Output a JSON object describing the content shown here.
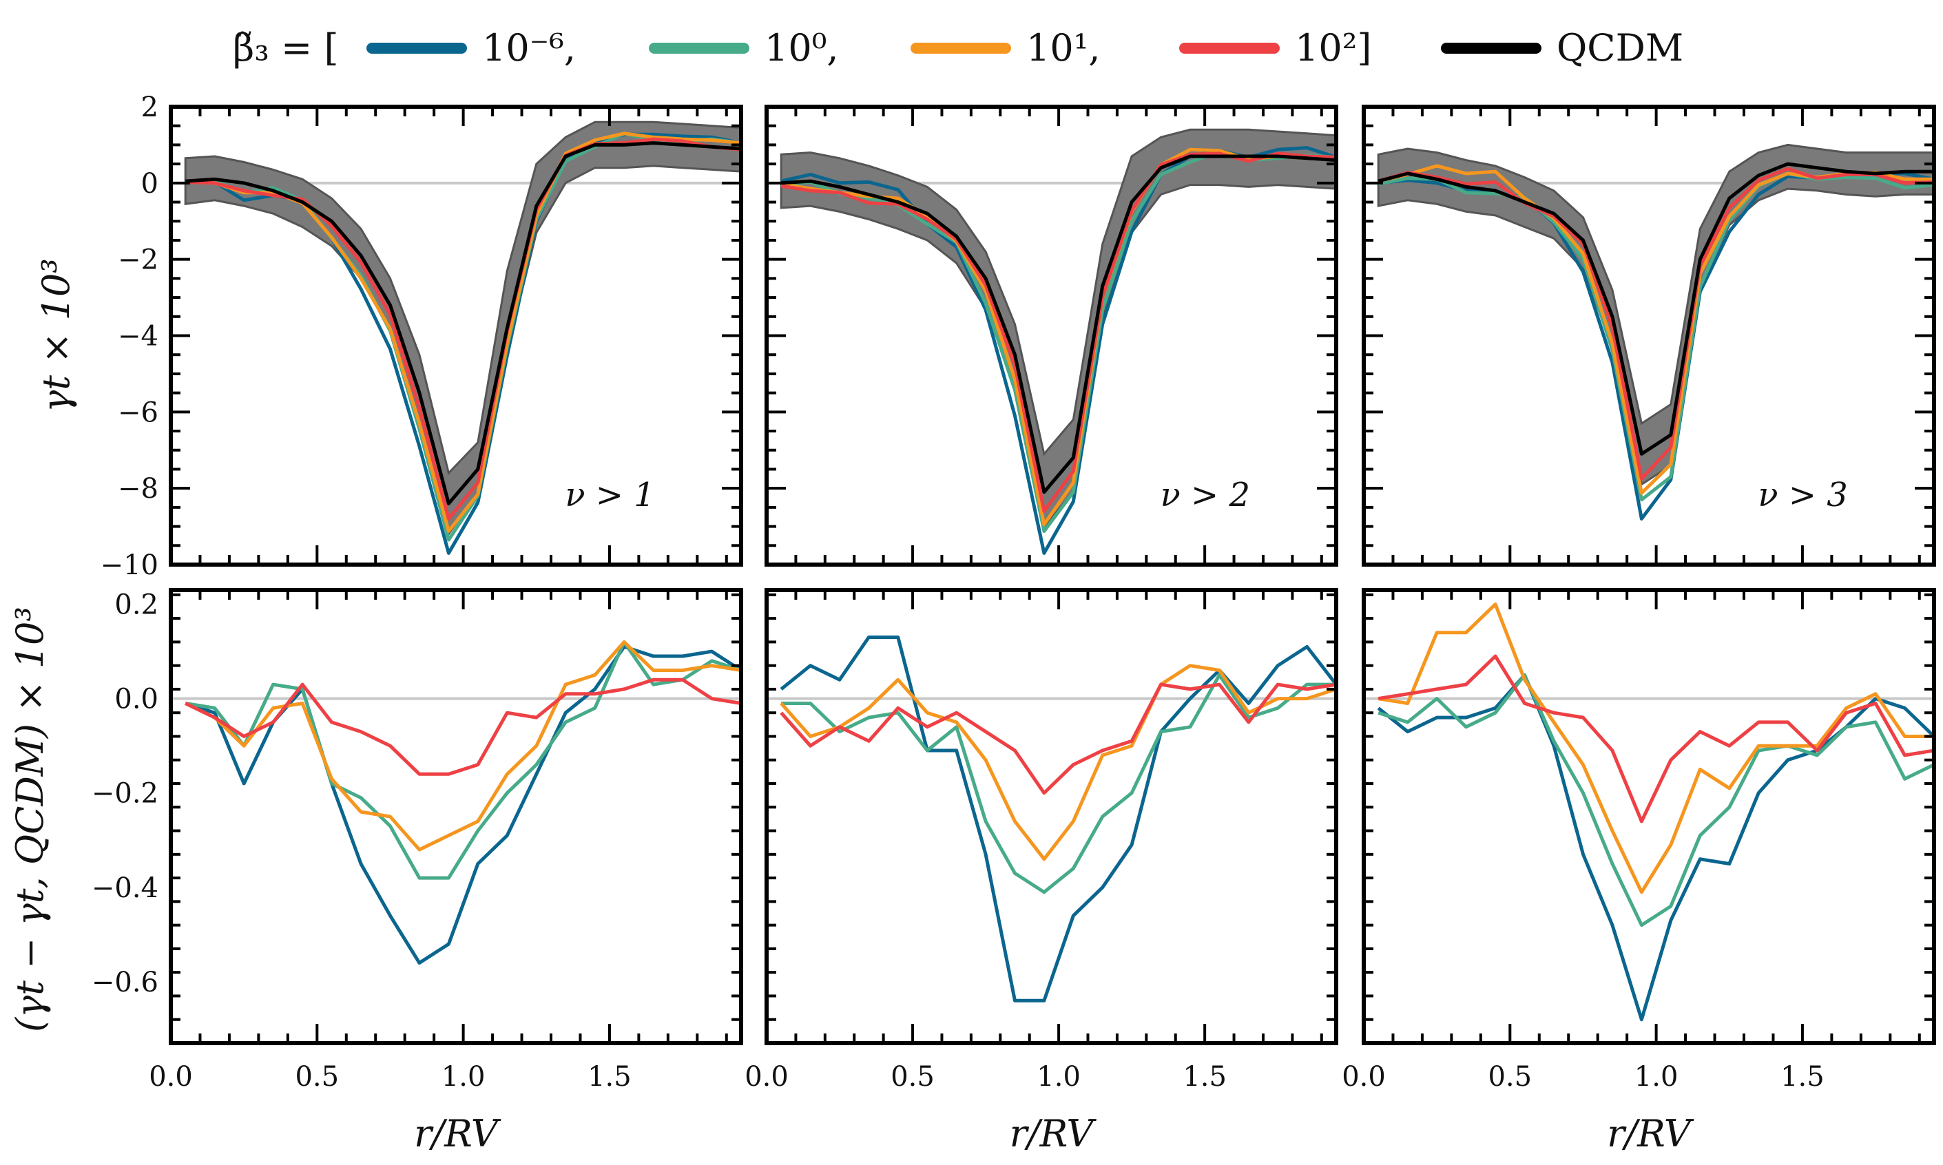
{
  "legend": {
    "prefix": "β̃₃ = [",
    "items": [
      {
        "label": "10⁻⁶,",
        "color": "#0b668f"
      },
      {
        "label": "10⁰,",
        "color": "#47ab8a"
      },
      {
        "label": "10¹,",
        "color": "#f5961f"
      },
      {
        "label": "10²]",
        "color": "#ee4145"
      },
      {
        "label": "QCDM",
        "color": "#000000"
      }
    ]
  },
  "labels": {
    "top_ylabel": "γt × 10³",
    "bottom_ylabel": "(γt − γt, QCDM) × 10³",
    "xlabel": "r/RV"
  },
  "chart_data": {
    "type": "line",
    "x": [
      0.05,
      0.15,
      0.25,
      0.35,
      0.45,
      0.55,
      0.65,
      0.75,
      0.85,
      0.95,
      1.05,
      1.15,
      1.25,
      1.35,
      1.45,
      1.55,
      1.65,
      1.75,
      1.85,
      1.95
    ],
    "xlim": [
      0.0,
      1.95
    ],
    "x_ticks": [
      "0.0",
      "0.5",
      "1.0",
      "1.5"
    ],
    "top_ylim": [
      -10,
      2
    ],
    "top_y_ticks": [
      "2",
      "0",
      "−2",
      "−4",
      "−6",
      "−8",
      "−10"
    ],
    "bottom_ylim": [
      -0.73,
      0.23
    ],
    "bottom_y_ticks": [
      "0.2",
      "0.0",
      "−0.2",
      "−0.4",
      "−0.6"
    ],
    "panels": [
      {
        "annotation": "ν > 1",
        "qcdm": [
          0.05,
          0.1,
          0.0,
          -0.2,
          -0.5,
          -1.0,
          -1.9,
          -3.2,
          -5.5,
          -8.4,
          -7.5,
          -3.8,
          -0.6,
          0.7,
          1.0,
          1.0,
          1.05,
          1.0,
          0.95,
          0.9
        ],
        "band_upper": [
          0.65,
          0.7,
          0.55,
          0.35,
          0.1,
          -0.4,
          -1.2,
          -2.5,
          -4.5,
          -7.6,
          -6.8,
          -2.3,
          0.5,
          1.2,
          1.6,
          1.6,
          1.6,
          1.55,
          1.5,
          1.45
        ],
        "band_lower": [
          -0.55,
          -0.45,
          -0.6,
          -0.8,
          -1.15,
          -1.65,
          -2.5,
          -3.8,
          -6.3,
          -9.2,
          -8.1,
          -4.4,
          -1.3,
          0.0,
          0.4,
          0.4,
          0.45,
          0.4,
          0.35,
          0.3
        ],
        "diff": [
          {
            "name": "10⁻⁶,",
            "values": [
              -0.01,
              -0.03,
              -0.18,
              -0.05,
              0.02,
              -0.18,
              -0.35,
              -0.46,
              -0.56,
              -0.52,
              -0.35,
              -0.29,
              -0.16,
              -0.03,
              0.02,
              0.11,
              0.09,
              0.09,
              0.1,
              0.06
            ]
          },
          {
            "name": "10⁰,",
            "values": [
              -0.01,
              -0.02,
              -0.1,
              0.03,
              0.02,
              -0.18,
              -0.21,
              -0.27,
              -0.38,
              -0.38,
              -0.28,
              -0.2,
              -0.14,
              -0.05,
              -0.02,
              0.12,
              0.03,
              0.04,
              0.08,
              0.06
            ]
          },
          {
            "name": "10¹,",
            "values": [
              -0.01,
              -0.04,
              -0.1,
              -0.02,
              -0.01,
              -0.17,
              -0.24,
              -0.25,
              -0.32,
              -0.29,
              -0.26,
              -0.16,
              -0.1,
              0.03,
              0.05,
              0.12,
              0.06,
              0.06,
              0.07,
              0.06
            ]
          },
          {
            "name": "10²]",
            "values": [
              -0.01,
              -0.04,
              -0.08,
              -0.05,
              0.03,
              -0.05,
              -0.07,
              -0.1,
              -0.16,
              -0.16,
              -0.14,
              -0.03,
              -0.04,
              0.01,
              0.01,
              0.02,
              0.04,
              0.04,
              0.0,
              -0.01
            ]
          }
        ]
      },
      {
        "annotation": "ν > 2",
        "qcdm": [
          0.0,
          0.05,
          -0.1,
          -0.3,
          -0.5,
          -0.8,
          -1.4,
          -2.5,
          -4.5,
          -8.1,
          -7.2,
          -2.7,
          -0.5,
          0.4,
          0.7,
          0.7,
          0.7,
          0.7,
          0.65,
          0.6
        ],
        "band_upper": [
          0.75,
          0.8,
          0.65,
          0.45,
          0.2,
          -0.1,
          -0.7,
          -1.8,
          -3.7,
          -7.1,
          -6.2,
          -1.6,
          0.7,
          1.2,
          1.4,
          1.4,
          1.4,
          1.35,
          1.3,
          1.25
        ],
        "band_lower": [
          -0.65,
          -0.6,
          -0.75,
          -0.95,
          -1.2,
          -1.5,
          -2.1,
          -3.3,
          -5.3,
          -9.0,
          -8.1,
          -3.5,
          -1.3,
          -0.3,
          -0.05,
          -0.05,
          -0.1,
          -0.05,
          -0.1,
          -0.15
        ],
        "diff": [
          {
            "name": "10⁻⁶,",
            "values": [
              0.02,
              0.07,
              0.04,
              0.13,
              0.13,
              -0.11,
              -0.11,
              -0.33,
              -0.64,
              -0.64,
              -0.46,
              -0.4,
              -0.31,
              -0.07,
              0.0,
              0.06,
              -0.01,
              0.07,
              0.11,
              0.03
            ]
          },
          {
            "name": "10⁰,",
            "values": [
              -0.01,
              -0.01,
              -0.07,
              -0.04,
              -0.03,
              -0.11,
              -0.06,
              -0.26,
              -0.37,
              -0.41,
              -0.36,
              -0.25,
              -0.2,
              -0.07,
              -0.06,
              0.05,
              -0.04,
              -0.02,
              0.03,
              0.03
            ]
          },
          {
            "name": "10¹,",
            "values": [
              -0.01,
              -0.08,
              -0.06,
              -0.02,
              0.04,
              -0.03,
              -0.05,
              -0.13,
              -0.26,
              -0.34,
              -0.26,
              -0.12,
              -0.1,
              0.03,
              0.07,
              0.06,
              -0.03,
              0.0,
              0.0,
              0.02
            ]
          },
          {
            "name": "10²]",
            "values": [
              -0.03,
              -0.1,
              -0.06,
              -0.09,
              -0.02,
              -0.06,
              -0.03,
              -0.07,
              -0.11,
              -0.2,
              -0.14,
              -0.11,
              -0.09,
              0.03,
              0.02,
              0.03,
              -0.05,
              0.03,
              0.02,
              0.03
            ]
          }
        ]
      },
      {
        "annotation": "ν > 3",
        "qcdm": [
          0.05,
          0.25,
          0.1,
          -0.1,
          -0.2,
          -0.5,
          -0.8,
          -1.5,
          -3.5,
          -7.1,
          -6.6,
          -2.0,
          -0.4,
          0.2,
          0.5,
          0.4,
          0.3,
          0.25,
          0.3,
          0.3
        ],
        "band_upper": [
          0.75,
          0.9,
          0.8,
          0.6,
          0.45,
          0.15,
          -0.2,
          -0.9,
          -2.8,
          -6.3,
          -5.8,
          -1.2,
          0.3,
          0.8,
          1.0,
          0.9,
          0.8,
          0.8,
          0.8,
          0.8
        ],
        "band_lower": [
          -0.6,
          -0.45,
          -0.55,
          -0.75,
          -0.85,
          -1.15,
          -1.45,
          -2.25,
          -4.3,
          -7.9,
          -7.4,
          -2.7,
          -1.1,
          -0.45,
          -0.15,
          -0.2,
          -0.3,
          -0.35,
          -0.3,
          -0.3
        ],
        "diff": [
          {
            "name": "10⁻⁶,",
            "values": [
              -0.02,
              -0.07,
              -0.04,
              -0.04,
              -0.02,
              0.05,
              -0.1,
              -0.33,
              -0.48,
              -0.68,
              -0.47,
              -0.34,
              -0.35,
              -0.2,
              -0.13,
              -0.11,
              -0.06,
              0.0,
              -0.02,
              -0.08
            ]
          },
          {
            "name": "10⁰,",
            "values": [
              -0.03,
              -0.05,
              0.0,
              -0.06,
              -0.03,
              0.05,
              -0.09,
              -0.2,
              -0.35,
              -0.48,
              -0.44,
              -0.29,
              -0.23,
              -0.11,
              -0.1,
              -0.12,
              -0.06,
              -0.05,
              -0.17,
              -0.14
            ]
          },
          {
            "name": "10¹,",
            "values": [
              0.0,
              -0.01,
              0.14,
              0.14,
              0.2,
              0.04,
              -0.05,
              -0.14,
              -0.28,
              -0.41,
              -0.31,
              -0.15,
              -0.19,
              -0.1,
              -0.1,
              -0.1,
              -0.02,
              0.01,
              -0.08,
              -0.08
            ]
          },
          {
            "name": "10²]",
            "values": [
              0.0,
              0.01,
              0.02,
              0.03,
              0.09,
              -0.01,
              -0.03,
              -0.04,
              -0.11,
              -0.26,
              -0.13,
              -0.07,
              -0.1,
              -0.05,
              -0.05,
              -0.11,
              -0.03,
              -0.01,
              -0.12,
              -0.11
            ]
          }
        ]
      }
    ]
  }
}
